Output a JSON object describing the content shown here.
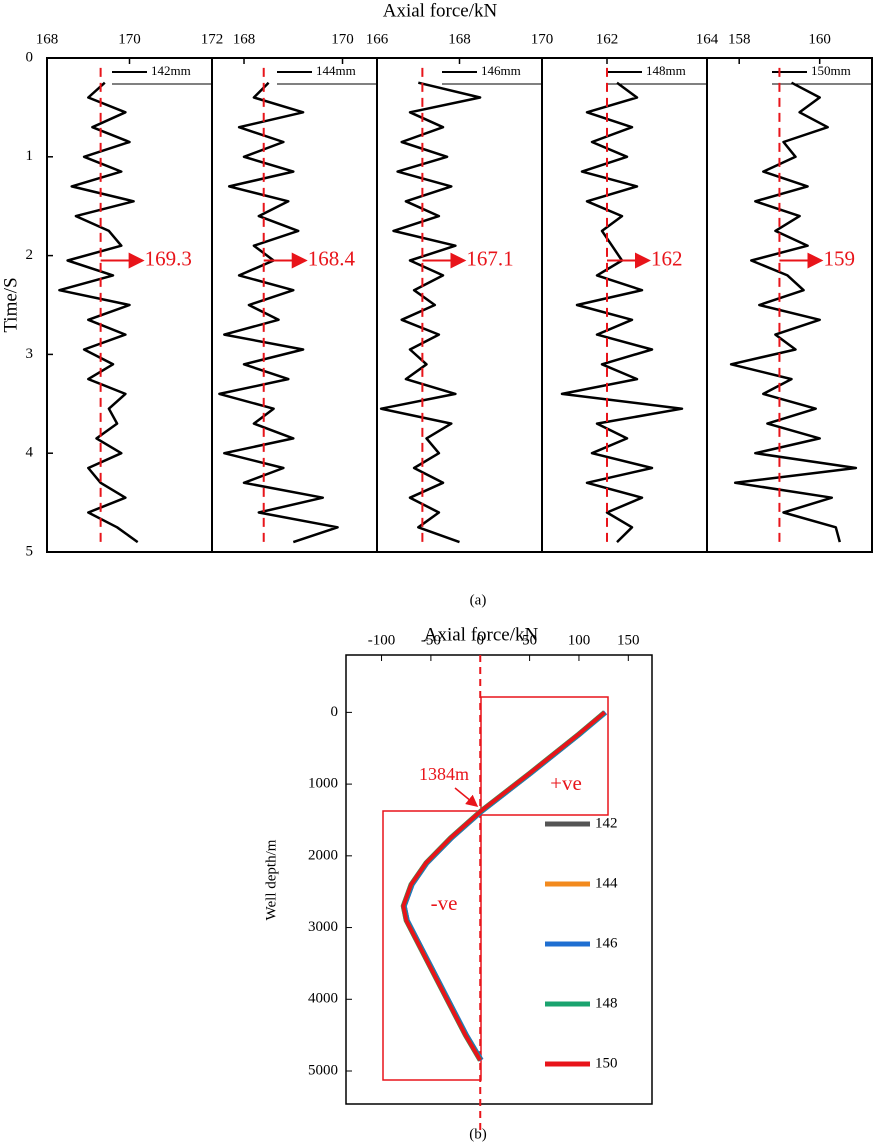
{
  "chart_data": [
    {
      "type": "line",
      "x_label": "Axial force/kN",
      "y_label": "Time/S",
      "caption": "(a)",
      "ylim": [
        0,
        5
      ],
      "yticks": [
        0,
        1,
        2,
        3,
        4,
        5
      ],
      "inverted_y": true,
      "mean_color": "#e8141a",
      "time": [
        0.25,
        0.4,
        0.55,
        0.7,
        0.85,
        1,
        1.15,
        1.3,
        1.45,
        1.6,
        1.75,
        1.9,
        2.05,
        2.2,
        2.35,
        2.5,
        2.65,
        2.8,
        2.95,
        3.1,
        3.25,
        3.4,
        3.55,
        3.7,
        3.85,
        4,
        4.15,
        4.3,
        4.45,
        4.6,
        4.75,
        4.9
      ],
      "panels": [
        {
          "xlim": [
            168,
            172
          ],
          "xticks": [
            168,
            170,
            172
          ],
          "mean": 169.3,
          "series": [
            {
              "name": "142mm",
              "color": "#000000",
              "values": [
                169.4,
                169.0,
                169.9,
                169.1,
                170.0,
                168.9,
                169.8,
                168.6,
                170.1,
                168.7,
                169.5,
                169.8,
                168.5,
                169.6,
                168.3,
                170.0,
                169.0,
                169.9,
                168.9,
                169.6,
                169.0,
                169.9,
                169.5,
                169.7,
                169.2,
                169.8,
                169.0,
                169.3,
                169.9,
                169.0,
                169.7,
                170.2
              ]
            }
          ]
        },
        {
          "xlim": [
            167.35,
            170.7
          ],
          "xticks": [
            168,
            170
          ],
          "mean": 168.4,
          "series": [
            {
              "name": "144mm",
              "color": "#000000",
              "values": [
                168.5,
                168.2,
                169.2,
                167.9,
                168.8,
                168.0,
                169.0,
                167.7,
                168.9,
                168.3,
                169.1,
                168.2,
                168.6,
                167.9,
                169.0,
                168.1,
                168.7,
                167.6,
                169.2,
                168.0,
                168.9,
                167.5,
                168.6,
                168.2,
                169.0,
                167.6,
                168.8,
                168.0,
                169.6,
                168.3,
                169.9,
                169.0
              ]
            }
          ]
        },
        {
          "xlim": [
            166,
            170
          ],
          "xticks": [
            166,
            168,
            170
          ],
          "mean": 167.1,
          "series": [
            {
              "name": "146mm",
              "color": "#000000",
              "values": [
                167.0,
                168.5,
                166.8,
                167.6,
                166.6,
                167.7,
                166.5,
                167.8,
                166.7,
                167.5,
                166.4,
                167.9,
                166.8,
                167.6,
                166.9,
                167.4,
                166.6,
                167.5,
                166.8,
                167.2,
                166.7,
                167.9,
                166.1,
                167.8,
                167.2,
                167.5,
                166.9,
                167.6,
                166.8,
                167.5,
                167.0,
                168.0
              ]
            }
          ]
        },
        {
          "xlim": [
            160.7,
            164
          ],
          "xticks": [
            162,
            164
          ],
          "mean": 162,
          "series": [
            {
              "name": "148mm",
              "color": "#000000",
              "values": [
                162.2,
                162.6,
                161.6,
                162.5,
                161.7,
                162.4,
                161.5,
                162.6,
                161.6,
                162.3,
                161.9,
                162.1,
                162.3,
                161.8,
                162.7,
                161.4,
                162.5,
                161.8,
                162.9,
                161.9,
                162.6,
                161.1,
                163.5,
                161.8,
                162.4,
                161.7,
                162.9,
                161.6,
                162.7,
                162.0,
                162.5,
                162.2
              ]
            }
          ]
        },
        {
          "xlim": [
            157.2,
            161.3
          ],
          "xticks": [
            158,
            160
          ],
          "mean": 159,
          "series": [
            {
              "name": "150mm",
              "color": "#000000",
              "values": [
                159.3,
                160.0,
                159.5,
                160.2,
                159.1,
                159.4,
                158.6,
                159.7,
                158.4,
                159.5,
                158.9,
                159.7,
                158.3,
                159.2,
                159.6,
                158.5,
                160.0,
                158.9,
                159.4,
                157.8,
                159.3,
                158.6,
                159.9,
                158.7,
                160.0,
                158.4,
                160.9,
                157.9,
                160.3,
                159.1,
                160.4,
                160.5
              ]
            }
          ]
        }
      ]
    },
    {
      "type": "line",
      "x_label": "Axial force/kN",
      "y_label": "Well depth/m",
      "caption": "(b)",
      "xlim": [
        -136,
        174
      ],
      "xticks": [
        -100,
        -50,
        0,
        50,
        100,
        150
      ],
      "ylim": [
        -800,
        5460
      ],
      "yticks": [
        0,
        1000,
        2000,
        3000,
        4000,
        5000
      ],
      "inverted_y": true,
      "crossing_label": "1384m",
      "positive_label": "+ve",
      "negative_label": "-ve",
      "zero_color": "#e8141a",
      "depth": [
        0,
        300,
        850,
        1384,
        1750,
        2100,
        2400,
        2700,
        2900,
        3300,
        3700,
        4100,
        4500,
        4850
      ],
      "series": [
        {
          "name": "142",
          "color": "#555555",
          "values": [
            126,
            101,
            51,
            1,
            -29,
            -54,
            -69,
            -77,
            -74,
            -59,
            -44,
            -29,
            -14,
            1
          ]
        },
        {
          "name": "144",
          "color": "#f28a1e",
          "values": [
            126,
            100,
            50,
            0,
            -30,
            -55,
            -70,
            -78,
            -75,
            -60,
            -45,
            -30,
            -15,
            0
          ]
        },
        {
          "name": "146",
          "color": "#1f6fd1",
          "values": [
            127,
            101,
            51,
            1,
            -29,
            -54,
            -69,
            -77,
            -74,
            -59,
            -44,
            -29,
            -14,
            1
          ]
        },
        {
          "name": "148",
          "color": "#1aa36f",
          "values": [
            126,
            100,
            50,
            0,
            -30,
            -55,
            -70,
            -78,
            -75,
            -60,
            -45,
            -30,
            -15,
            0
          ]
        },
        {
          "name": "150",
          "color": "#e8141a",
          "values": [
            126,
            100,
            50,
            0,
            -30,
            -55,
            -70,
            -78,
            -75,
            -60,
            -45,
            -30,
            -15,
            0
          ]
        }
      ]
    }
  ]
}
